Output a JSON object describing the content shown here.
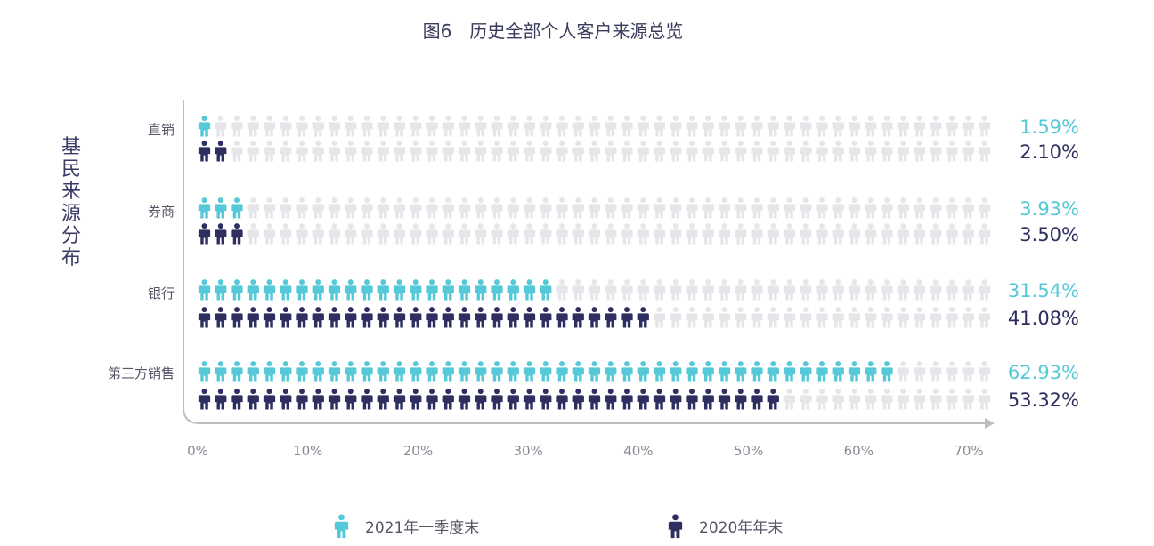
{
  "chart_data": {
    "type": "pictograph",
    "title": "图6　历史全部个人客户来源总览",
    "ylabel": "基民来源分布",
    "xlim": [
      0,
      70
    ],
    "x_ticks": [
      "0%",
      "10%",
      "20%",
      "30%",
      "40%",
      "50%",
      "60%",
      "70%"
    ],
    "categories": [
      "直销",
      "券商",
      "银行",
      "第三方销售"
    ],
    "series": [
      {
        "name": "2021年一季度末",
        "color": "#55c9d8",
        "values": [
          1.59,
          3.93,
          31.54,
          62.93
        ],
        "labels": [
          "1.59%",
          "3.93%",
          "31.54%",
          "62.93%"
        ]
      },
      {
        "name": "2020年年末",
        "color": "#2e2e60",
        "values": [
          2.1,
          3.5,
          41.08,
          53.32
        ],
        "labels": [
          "2.10%",
          "3.50%",
          "41.08%",
          "53.32%"
        ]
      }
    ],
    "empty_icon_color": "#e6e6ea",
    "axis_color": "#bdbdc4",
    "label_color": "#555566"
  }
}
